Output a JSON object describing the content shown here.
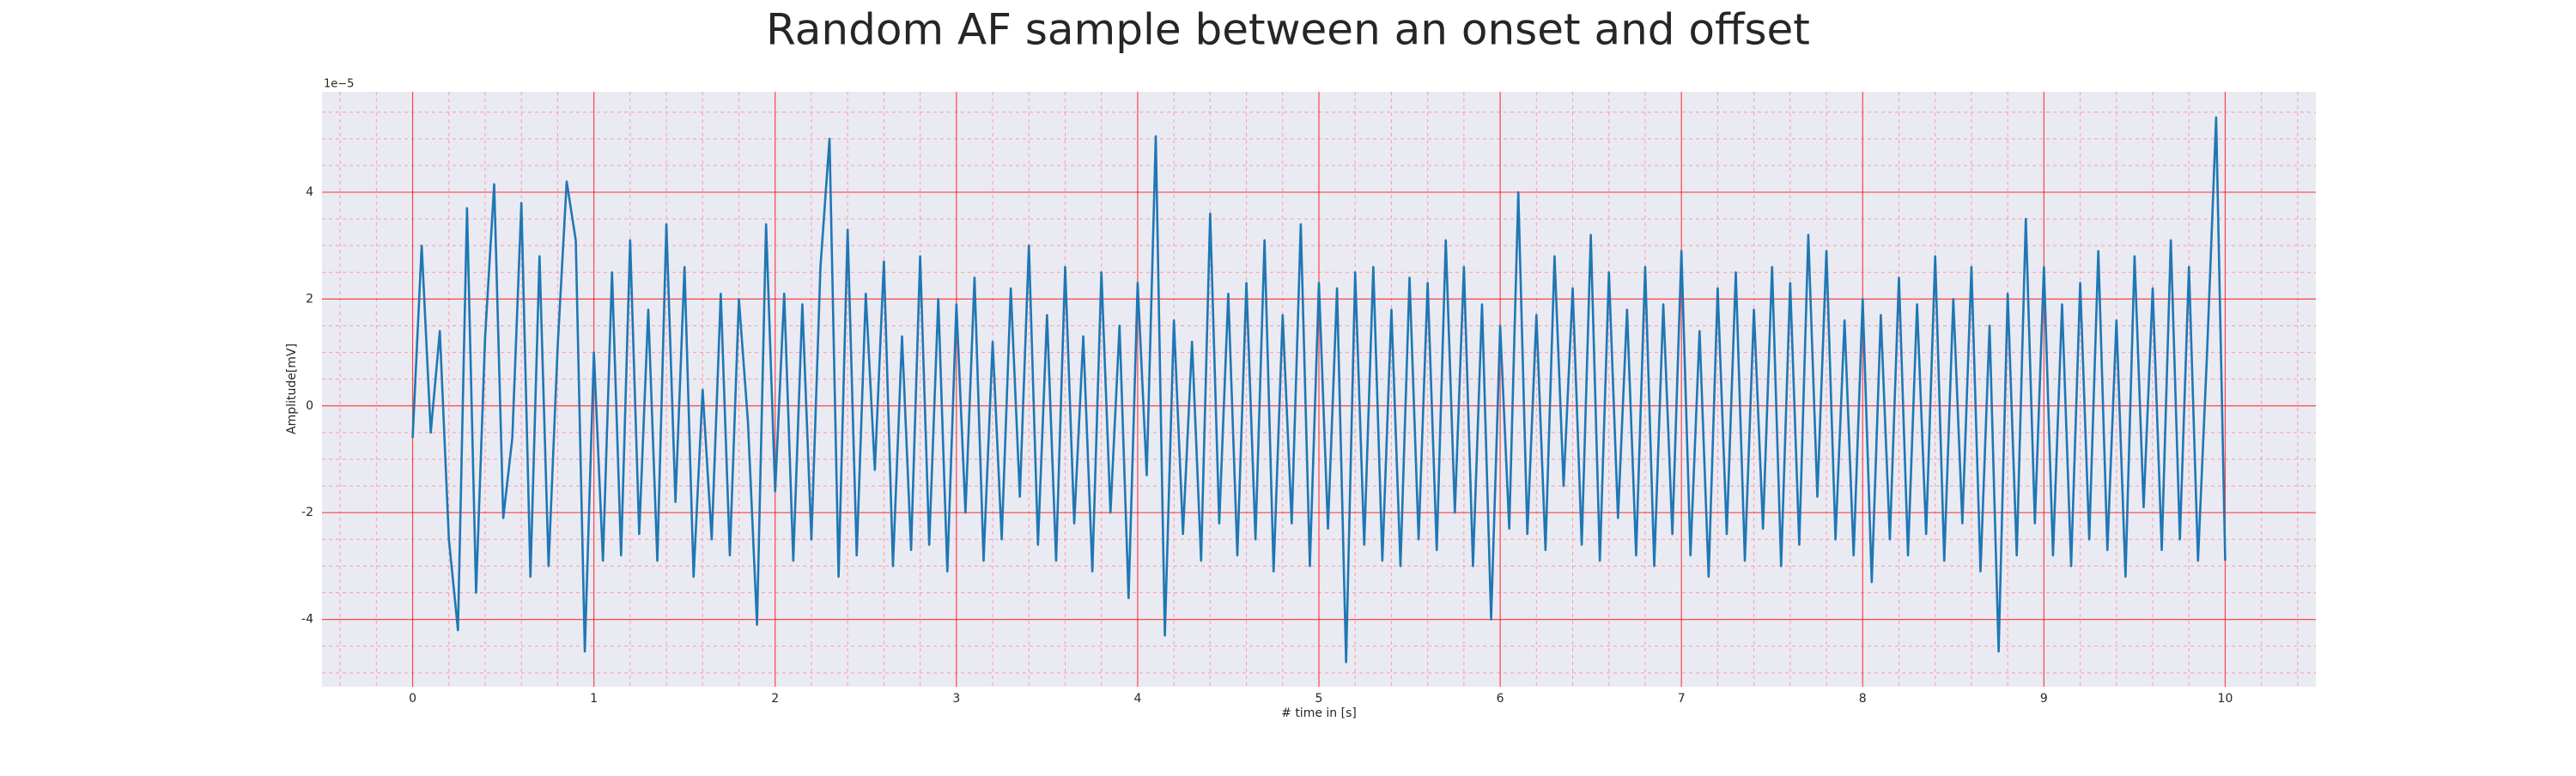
{
  "chart_data": {
    "type": "line",
    "title": "Random AF sample between an onset and offset",
    "xlabel": "# time in [s]",
    "ylabel": "Amplitude[mV]",
    "y_offset_label": "1e−5",
    "xlim": [
      -0.5,
      10.5
    ],
    "ylim": [
      -5.26,
      5.88
    ],
    "xticks": [
      0,
      1,
      2,
      3,
      4,
      5,
      6,
      7,
      8,
      9,
      10
    ],
    "yticks": [
      -4,
      -2,
      0,
      2,
      4
    ],
    "xminorticks": [
      -0.4,
      -0.2,
      0.2,
      0.4,
      0.6,
      0.8,
      1.2,
      1.4,
      1.6,
      1.8,
      2.2,
      2.4,
      2.6,
      2.8,
      3.2,
      3.4,
      3.6,
      3.8,
      4.2,
      4.4,
      4.6,
      4.8,
      5.2,
      5.4,
      5.6,
      5.8,
      6.2,
      6.4,
      6.6,
      6.8,
      7.2,
      7.4,
      7.6,
      7.8,
      8.2,
      8.4,
      8.6,
      8.8,
      9.2,
      9.4,
      9.6,
      9.8,
      10.2,
      10.4
    ],
    "yminorticks": [
      -5,
      -4.5,
      -3.5,
      -3,
      -2.5,
      -1.5,
      -1,
      -0.5,
      0.5,
      1,
      1.5,
      2.5,
      3,
      3.5,
      4.5,
      5,
      5.5
    ],
    "grid": true,
    "grid_color": "#ff0000",
    "minor_grid_color": "#ff9aa8",
    "background": "#eaeaf2",
    "x": [
      0,
      0.05,
      0.1,
      0.15,
      0.2,
      0.25,
      0.3,
      0.35,
      0.4,
      0.45,
      0.5,
      0.55,
      0.6,
      0.65,
      0.7,
      0.75,
      0.8,
      0.85,
      0.9,
      0.95,
      1,
      1.05,
      1.1,
      1.15,
      1.2,
      1.25,
      1.3,
      1.35,
      1.4,
      1.45,
      1.5,
      1.55,
      1.6,
      1.65,
      1.7,
      1.75,
      1.8,
      1.85,
      1.9,
      1.95,
      2,
      2.05,
      2.1,
      2.15,
      2.2,
      2.25,
      2.3,
      2.35,
      2.4,
      2.45,
      2.5,
      2.55,
      2.6,
      2.65,
      2.7,
      2.75,
      2.8,
      2.85,
      2.9,
      2.95,
      3,
      3.05,
      3.1,
      3.15,
      3.2,
      3.25,
      3.3,
      3.35,
      3.4,
      3.45,
      3.5,
      3.55,
      3.6,
      3.65,
      3.7,
      3.75,
      3.8,
      3.85,
      3.9,
      3.95,
      4,
      4.05,
      4.1,
      4.15,
      4.2,
      4.25,
      4.3,
      4.35,
      4.4,
      4.45,
      4.5,
      4.55,
      4.6,
      4.65,
      4.7,
      4.75,
      4.8,
      4.85,
      4.9,
      4.95,
      5,
      5.05,
      5.1,
      5.15,
      5.2,
      5.25,
      5.3,
      5.35,
      5.4,
      5.45,
      5.5,
      5.55,
      5.6,
      5.65,
      5.7,
      5.75,
      5.8,
      5.85,
      5.9,
      5.95,
      6,
      6.05,
      6.1,
      6.15,
      6.2,
      6.25,
      6.3,
      6.35,
      6.4,
      6.45,
      6.5,
      6.55,
      6.6,
      6.65,
      6.7,
      6.75,
      6.8,
      6.85,
      6.9,
      6.95,
      7,
      7.05,
      7.1,
      7.15,
      7.2,
      7.25,
      7.3,
      7.35,
      7.4,
      7.45,
      7.5,
      7.55,
      7.6,
      7.65,
      7.7,
      7.75,
      7.8,
      7.85,
      7.9,
      7.95,
      8,
      8.05,
      8.1,
      8.15,
      8.2,
      8.25,
      8.3,
      8.35,
      8.4,
      8.45,
      8.5,
      8.55,
      8.6,
      8.65,
      8.7,
      8.75,
      8.8,
      8.85,
      8.9,
      8.95,
      9,
      9.05,
      9.1,
      9.15,
      9.2,
      9.25,
      9.3,
      9.35,
      9.4,
      9.45,
      9.5,
      9.55,
      9.6,
      9.65,
      9.7,
      9.75,
      9.8,
      9.85,
      9.9,
      9.95,
      10
    ],
    "series": [
      {
        "color": "#1f77b4",
        "values": [
          -0.6,
          3.0,
          -0.5,
          1.4,
          -2.5,
          -4.2,
          3.7,
          -3.5,
          1.3,
          4.15,
          -2.1,
          -0.6,
          3.8,
          -3.2,
          2.8,
          -3.0,
          1.1,
          4.2,
          3.1,
          -4.6,
          1.0,
          -2.9,
          2.5,
          -2.8,
          3.1,
          -2.4,
          1.8,
          -2.9,
          3.4,
          -1.8,
          2.6,
          -3.2,
          0.3,
          -2.5,
          2.1,
          -2.8,
          2.0,
          -0.3,
          -4.1,
          3.4,
          -1.6,
          2.1,
          -2.9,
          1.9,
          -2.5,
          2.6,
          5.0,
          -3.2,
          3.3,
          -2.8,
          2.1,
          -1.2,
          2.7,
          -3.0,
          1.3,
          -2.7,
          2.8,
          -2.6,
          2.0,
          -3.1,
          1.9,
          -2.0,
          2.4,
          -2.9,
          1.2,
          -2.5,
          2.2,
          -1.7,
          3.0,
          -2.6,
          1.7,
          -2.9,
          2.6,
          -2.2,
          1.3,
          -3.1,
          2.5,
          -2.0,
          1.5,
          -3.6,
          2.3,
          -1.3,
          5.05,
          -4.3,
          1.6,
          -2.4,
          1.2,
          -2.9,
          3.6,
          -2.2,
          2.1,
          -2.8,
          2.3,
          -2.5,
          3.1,
          -3.1,
          1.7,
          -2.2,
          3.4,
          -3.0,
          2.3,
          -2.3,
          2.2,
          -4.8,
          2.5,
          -2.6,
          2.6,
          -2.9,
          1.8,
          -3.0,
          2.4,
          -2.5,
          2.3,
          -2.7,
          3.1,
          -2.0,
          2.6,
          -3.0,
          1.9,
          -4.0,
          1.5,
          -2.3,
          4.0,
          -2.4,
          1.7,
          -2.7,
          2.8,
          -1.5,
          2.2,
          -2.6,
          3.2,
          -2.9,
          2.5,
          -2.1,
          1.8,
          -2.8,
          2.6,
          -3.0,
          1.9,
          -2.4,
          2.9,
          -2.8,
          1.4,
          -3.2,
          2.2,
          -2.4,
          2.5,
          -2.9,
          1.8,
          -2.3,
          2.6,
          -3.0,
          2.3,
          -2.6,
          3.2,
          -1.7,
          2.9,
          -2.5,
          1.6,
          -2.8,
          2.0,
          -3.3,
          1.7,
          -2.5,
          2.4,
          -2.8,
          1.9,
          -2.4,
          2.8,
          -2.9,
          2.0,
          -2.2,
          2.6,
          -3.1,
          1.5,
          -4.6,
          2.1,
          -2.8,
          3.5,
          -2.2,
          2.6,
          -2.8,
          1.9,
          -3.0,
          2.3,
          -2.5,
          2.9,
          -2.7,
          1.6,
          -3.2,
          2.8,
          -1.9,
          2.2,
          -2.7,
          3.1,
          -2.5,
          2.6,
          -2.9,
          1.0,
          5.4,
          -2.9
        ]
      }
    ]
  }
}
